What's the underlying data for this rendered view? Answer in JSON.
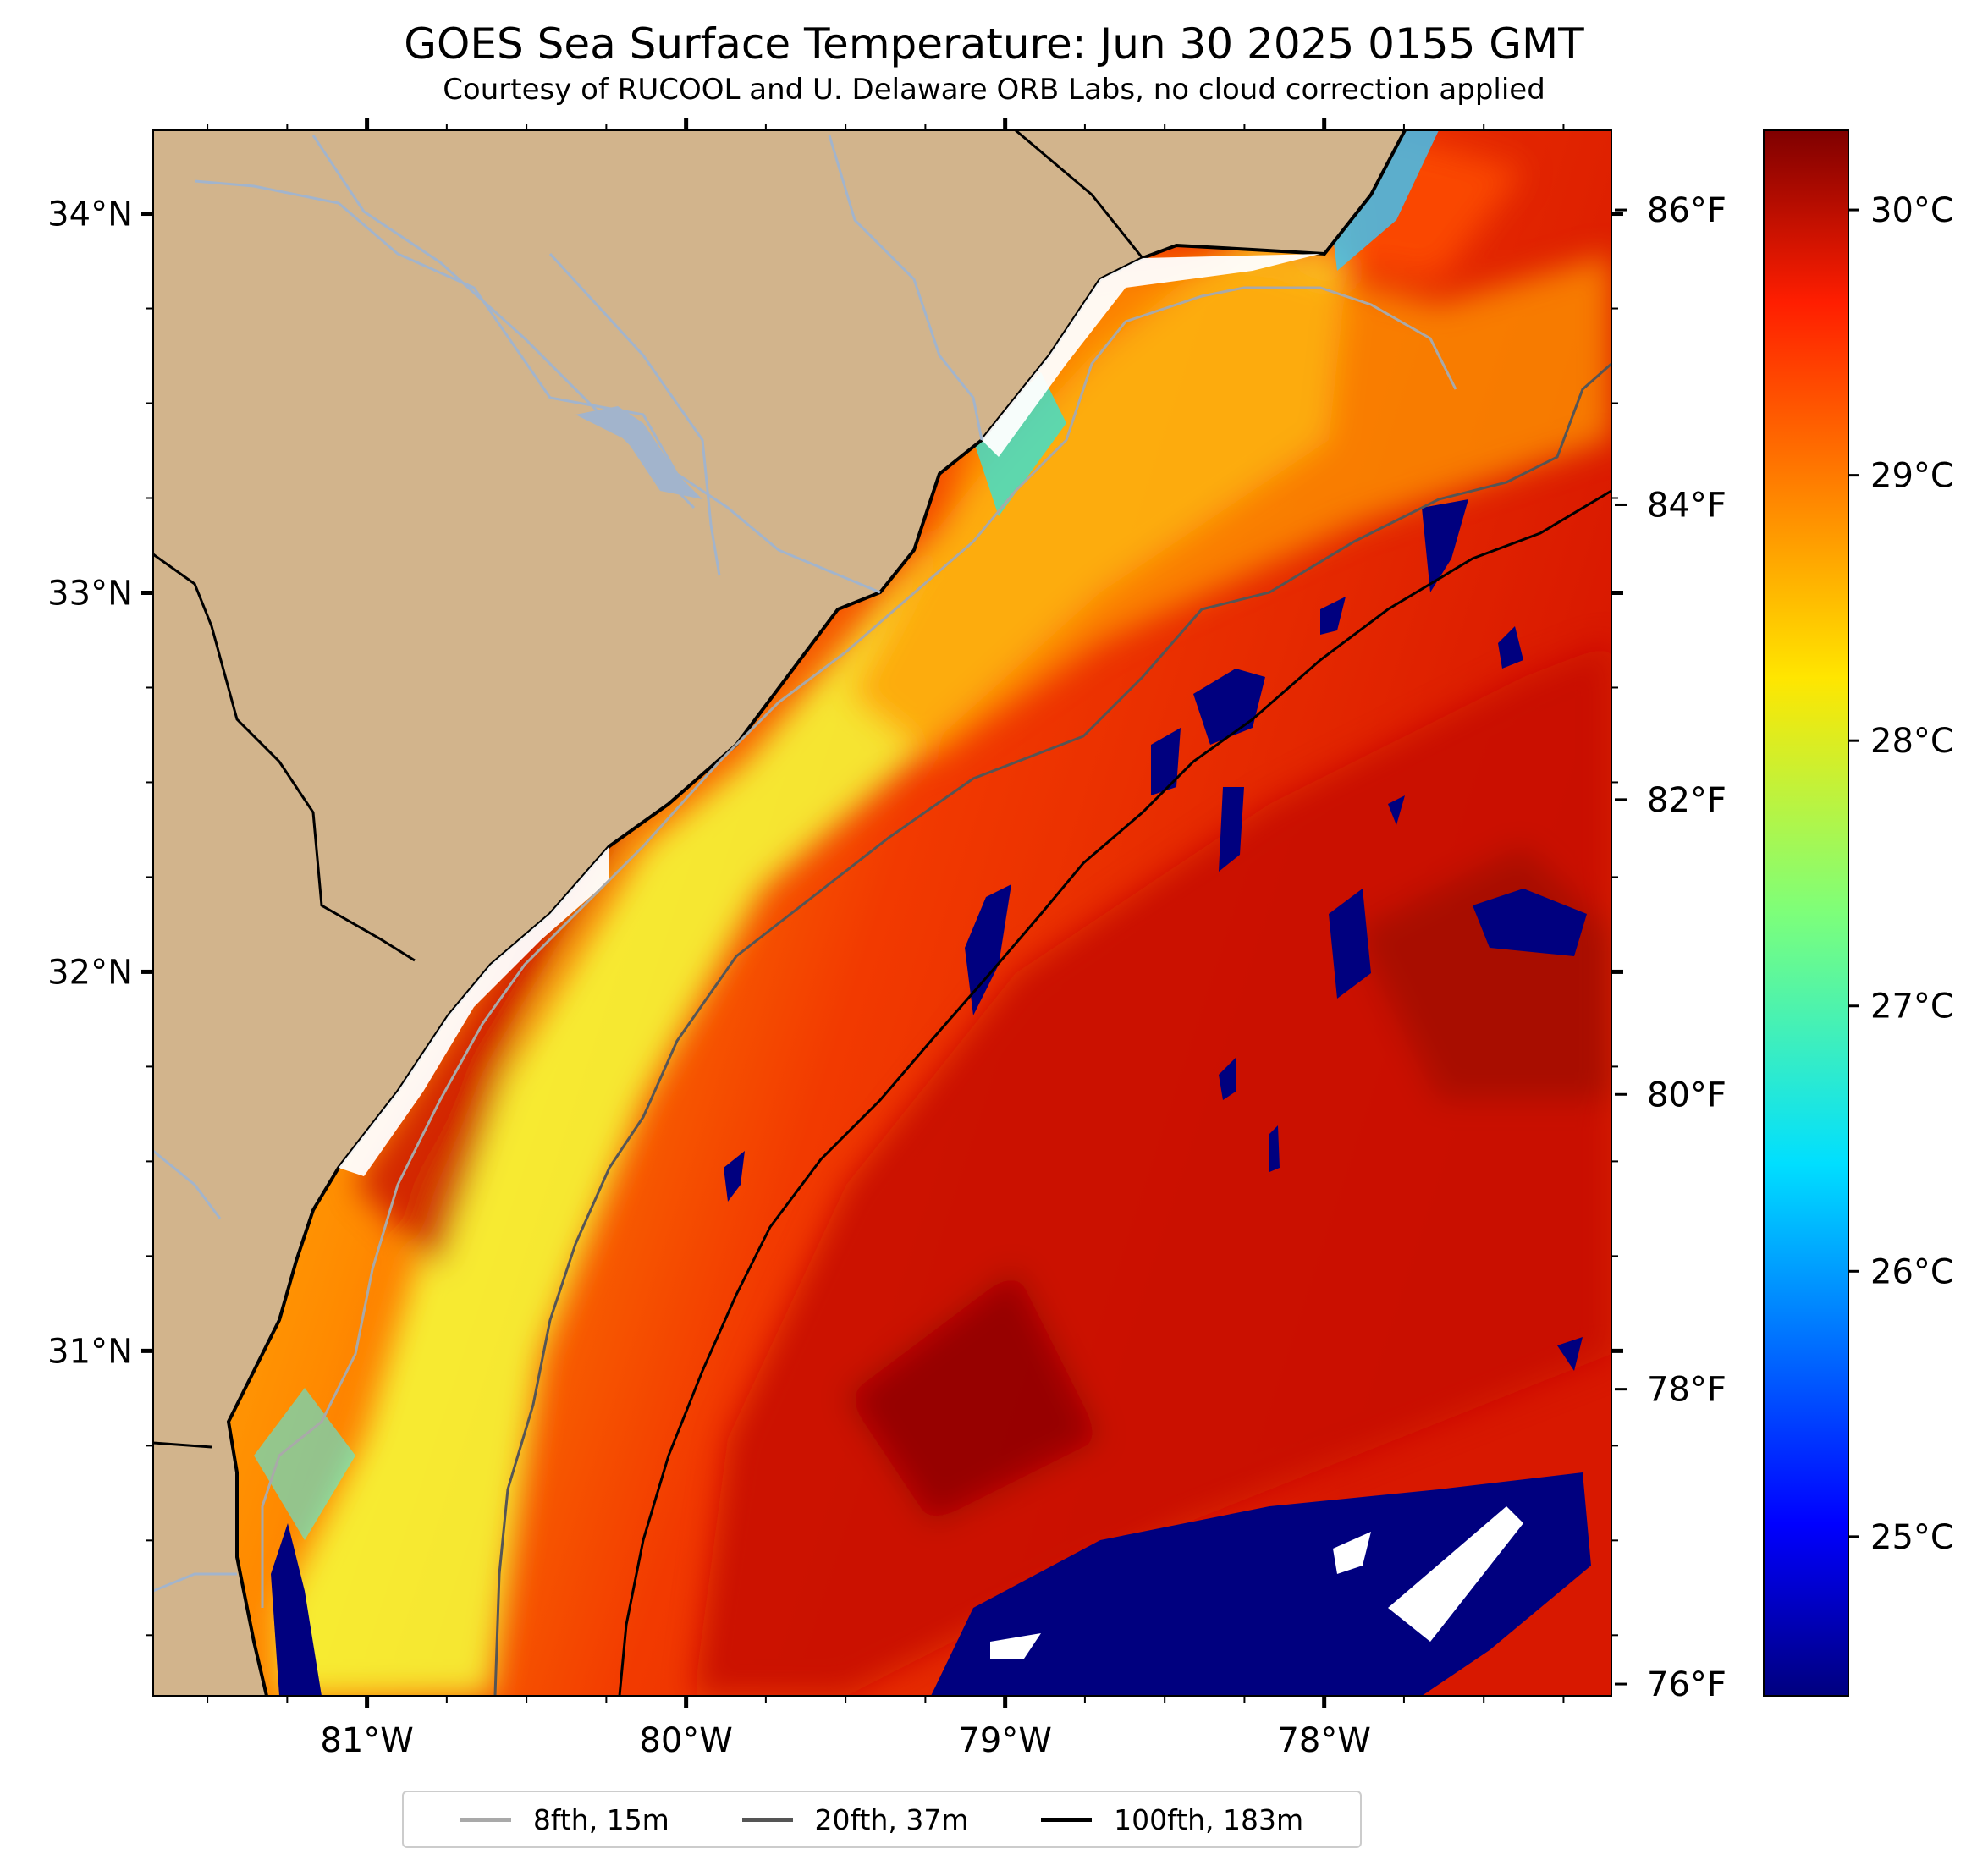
{
  "title": "GOES Sea Surface Temperature: Jun 30 2025 0155 GMT",
  "subtitle": "Courtesy of RUCOOL and U. Delaware ORB Labs, no cloud correction applied",
  "map": {
    "land_color": "#d2b48c",
    "coast_color": "#000000",
    "river_color": "#a2b4cc",
    "lon_range": [
      -81.67,
      -77.1
    ],
    "lat_range": [
      30.09,
      34.22
    ],
    "lat_labels": [
      {
        "value": 34,
        "label": "34°N"
      },
      {
        "value": 33,
        "label": "33°N"
      },
      {
        "value": 32,
        "label": "32°N"
      },
      {
        "value": 31,
        "label": "31°N"
      }
    ],
    "lon_labels": [
      {
        "value": -81,
        "label": "81°W"
      },
      {
        "value": -80,
        "label": "80°W"
      },
      {
        "value": -79,
        "label": "79°W"
      },
      {
        "value": -78,
        "label": "78°W"
      }
    ],
    "isobaths": [
      {
        "name": "8fth, 15m",
        "color": "#a9a9a9"
      },
      {
        "name": "20fth, 37m",
        "color": "#555555"
      },
      {
        "name": "100fth, 183m",
        "color": "#000000"
      }
    ]
  },
  "colorbar": {
    "colormap": "jet",
    "celsius_range": [
      24.4,
      30.3
    ],
    "celsius_labels": [
      {
        "value": 30,
        "label": "30°C"
      },
      {
        "value": 29,
        "label": "29°C"
      },
      {
        "value": 28,
        "label": "28°C"
      },
      {
        "value": 27,
        "label": "27°C"
      },
      {
        "value": 26,
        "label": "26°C"
      },
      {
        "value": 25,
        "label": "25°C"
      }
    ],
    "fahrenheit_labels": [
      {
        "value": 86,
        "label": "86°F"
      },
      {
        "value": 84,
        "label": "84°F"
      },
      {
        "value": 82,
        "label": "82°F"
      },
      {
        "value": 80,
        "label": "80°F"
      },
      {
        "value": 78,
        "label": "78°F"
      },
      {
        "value": 76,
        "label": "76°F"
      }
    ]
  },
  "legend": {
    "items": [
      {
        "label": "8fth, 15m"
      },
      {
        "label": "20fth, 37m"
      },
      {
        "label": "100fth, 183m"
      }
    ]
  }
}
